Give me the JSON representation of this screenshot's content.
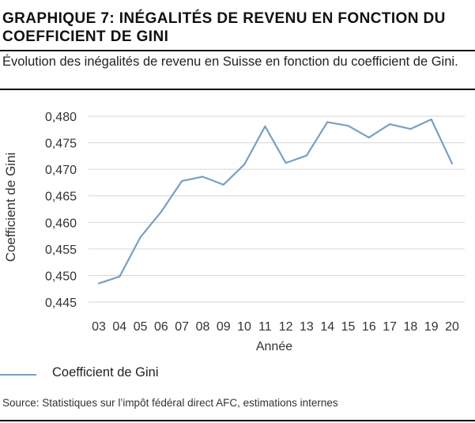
{
  "header": {
    "title": "GRAPHIQUE 7: INÉGALITÉS DE REVENU EN FONCTION DU COEFFICIENT DE GINI",
    "subtitle": "Évolution des inégalités de revenu en Suisse en fonction du coefficient de Gini."
  },
  "footer": {
    "source": "Source: Statistiques sur l’impôt fédéral direct AFC, estimations internes"
  },
  "colors": {
    "series": "#7a9fc2",
    "gridline": "#d6d6d6",
    "rule": "#111111"
  },
  "chart_data": {
    "type": "line",
    "xlabel": "Année",
    "ylabel": "Coefficient de Gini",
    "ylim": [
      0.445,
      0.48
    ],
    "yticks": [
      "0,445",
      "0,450",
      "0,455",
      "0,460",
      "0,465",
      "0,470",
      "0,475",
      "0,480"
    ],
    "grid": "horizontal",
    "legend_position": "bottom-left",
    "categories": [
      "03",
      "04",
      "05",
      "06",
      "07",
      "08",
      "09",
      "10",
      "11",
      "12",
      "13",
      "14",
      "15",
      "16",
      "17",
      "18",
      "19",
      "20"
    ],
    "series": [
      {
        "name": "Coefficient de Gini",
        "values": [
          0.4485,
          0.4498,
          0.4572,
          0.462,
          0.4678,
          0.4686,
          0.4671,
          0.4709,
          0.4781,
          0.4712,
          0.4726,
          0.4789,
          0.4782,
          0.476,
          0.4785,
          0.4776,
          0.4794,
          0.4711
        ]
      }
    ]
  }
}
